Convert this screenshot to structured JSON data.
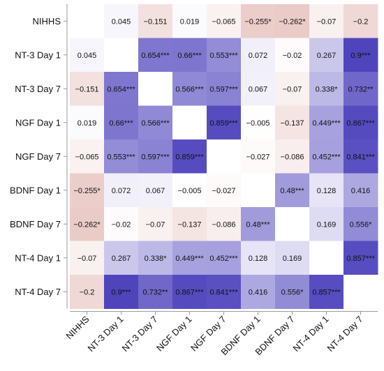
{
  "chart_data": {
    "type": "heatmap",
    "title": "",
    "xlabel": "",
    "ylabel": "",
    "labels": [
      "NIHHS",
      "NT-3 Day 1",
      "NT-3 Day 7",
      "NGF Day 1",
      "NGF Day 7",
      "BDNF Day 1",
      "BDNF Day 7",
      "NT-4 Day 1",
      "NT-4 Day 7"
    ],
    "color_scale": {
      "negative": "#b03a2e",
      "positive": "#3b2fb5",
      "zero": "#ffffff"
    },
    "values": [
      [
        null,
        0.045,
        -0.151,
        0.019,
        -0.065,
        -0.255,
        -0.262,
        -0.07,
        -0.2
      ],
      [
        0.045,
        null,
        0.654,
        0.66,
        0.553,
        0.072,
        -0.02,
        0.267,
        0.9
      ],
      [
        -0.151,
        0.654,
        null,
        0.566,
        0.597,
        0.067,
        -0.07,
        0.338,
        0.732
      ],
      [
        0.019,
        0.66,
        0.566,
        null,
        0.859,
        -0.005,
        -0.137,
        0.449,
        0.867
      ],
      [
        -0.065,
        0.553,
        0.597,
        0.859,
        null,
        -0.027,
        -0.086,
        0.452,
        0.841
      ],
      [
        -0.255,
        0.072,
        0.067,
        -0.005,
        -0.027,
        null,
        0.48,
        0.128,
        0.416
      ],
      [
        -0.262,
        -0.02,
        -0.07,
        -0.137,
        -0.086,
        0.48,
        null,
        0.169,
        0.556
      ],
      [
        -0.07,
        0.267,
        0.338,
        0.449,
        0.452,
        0.128,
        0.169,
        null,
        0.857
      ],
      [
        -0.2,
        0.9,
        0.732,
        0.867,
        0.841,
        0.416,
        0.556,
        0.857,
        null
      ]
    ],
    "cell_text": [
      [
        "",
        "0.045",
        "−0.151",
        "0.019",
        "−0.065",
        "−0.255*",
        "−0.262*",
        "−0.07",
        "−0.2"
      ],
      [
        "0.045",
        "",
        "0.654***",
        "0.66***",
        "0.553***",
        "0.072",
        "−0.02",
        "0.267",
        "0.9***"
      ],
      [
        "−0.151",
        "0.654***",
        "",
        "0.566***",
        "0.597***",
        "0.067",
        "−0.07",
        "0.338*",
        "0.732**"
      ],
      [
        "0.019",
        "0.66***",
        "0.566***",
        "",
        "0.859***",
        "−0.005",
        "−0.137",
        "0.449***",
        "0.867***"
      ],
      [
        "−0.065",
        "0.553***",
        "0.597***",
        "0.859***",
        "",
        "−0.027",
        "−0.086",
        "0.452***",
        "0.841***"
      ],
      [
        "−0.255*",
        "0.072",
        "0.067",
        "−0.005",
        "−0.027",
        "",
        "0.48***",
        "0.128",
        "0.416"
      ],
      [
        "−0.262*",
        "−0.02",
        "−0.07",
        "−0.137",
        "−0.086",
        "0.48***",
        "",
        "0.169",
        "0.556*"
      ],
      [
        "−0.07",
        "0.267",
        "0.338*",
        "0.449***",
        "0.452***",
        "0.128",
        "0.169",
        "",
        "0.857***"
      ],
      [
        "−0.2",
        "0.9***",
        "0.732**",
        "0.867***",
        "0.841***",
        "0.416",
        "0.556*",
        "0.857***",
        ""
      ]
    ]
  }
}
